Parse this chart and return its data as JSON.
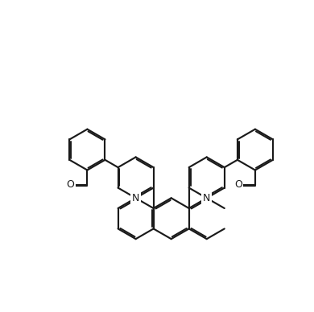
{
  "bg": "#ffffff",
  "lc": "#1a1a1a",
  "lw": 1.55,
  "dbo": 0.052,
  "shrink": 0.09,
  "fs": 9.0,
  "figsize": [
    3.9,
    3.88
  ],
  "dpi": 100,
  "xlim": [
    -0.5,
    10.5
  ],
  "ylim": [
    -0.3,
    10.3
  ]
}
